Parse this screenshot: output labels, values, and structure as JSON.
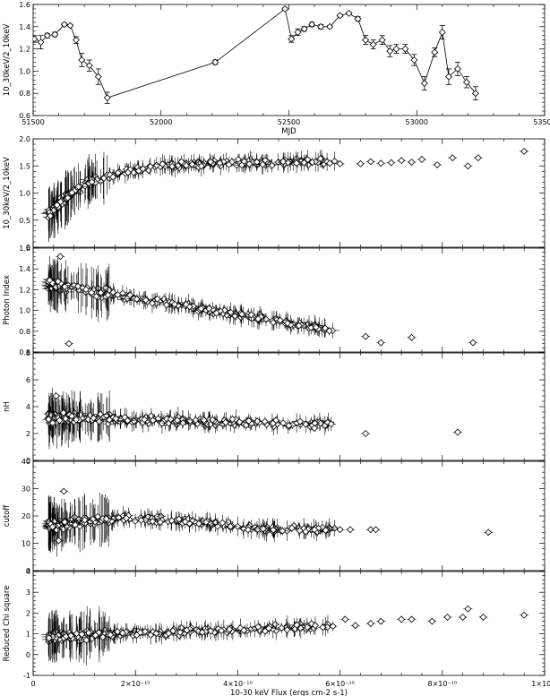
{
  "chart_data": [
    {
      "id": "ratio-vs-mjd",
      "type": "line",
      "xlabel": "MJD",
      "ylabel": "10_30keV/2_10keV",
      "xlim": [
        51500,
        53500
      ],
      "ylim": [
        0.6,
        1.6
      ],
      "xticks": [
        51500,
        52000,
        52500,
        53000,
        53500
      ],
      "yticks": [
        0.6,
        0.8,
        1.0,
        1.2,
        1.4,
        1.6
      ],
      "ytick_labels": [
        "0.6",
        "0.8",
        "1.0",
        "1.2",
        "1.4",
        "1.6"
      ],
      "marker": "diamond",
      "connected": true,
      "x": [
        51505,
        51530,
        51555,
        51585,
        51622,
        51645,
        51668,
        51690,
        51720,
        51755,
        51790,
        52212,
        52485,
        52510,
        52535,
        52560,
        52590,
        52625,
        52660,
        52700,
        52735,
        52770,
        52800,
        52830,
        52865,
        52895,
        52920,
        52955,
        52990,
        53030,
        53070,
        53100,
        53125,
        53160,
        53195,
        53230
      ],
      "y": [
        1.29,
        1.26,
        1.32,
        1.33,
        1.42,
        1.41,
        1.28,
        1.1,
        1.05,
        0.95,
        0.76,
        1.08,
        1.56,
        1.29,
        1.35,
        1.38,
        1.42,
        1.4,
        1.4,
        1.5,
        1.52,
        1.47,
        1.28,
        1.24,
        1.28,
        1.18,
        1.2,
        1.2,
        1.1,
        0.89,
        1.17,
        1.35,
        0.95,
        1.02,
        0.9,
        0.8
      ],
      "yerr": [
        0.03,
        0.06,
        0.02,
        0.02,
        0.01,
        0.01,
        0.03,
        0.06,
        0.05,
        0.07,
        0.05,
        0.02,
        0.01,
        0.03,
        0.03,
        0.02,
        0.02,
        0.02,
        0.01,
        0.01,
        0.01,
        0.02,
        0.04,
        0.04,
        0.04,
        0.05,
        0.04,
        0.04,
        0.05,
        0.06,
        0.04,
        0.06,
        0.07,
        0.06,
        0.05,
        0.06
      ]
    },
    {
      "id": "ratio-vs-flux",
      "type": "scatter",
      "ylabel": "10_30keV/2_10keV",
      "xlim": [
        0,
        1.0
      ],
      "ylim": [
        0,
        2.0
      ],
      "yticks": [
        0,
        0.5,
        1.0,
        1.5,
        2.0
      ],
      "ytick_labels": [
        "0",
        "0.5",
        "1.0",
        "1.5",
        "2.0"
      ],
      "marker": "diamond",
      "shape": {
        "kind": "saturating",
        "floor": 0.2,
        "top": 1.58,
        "slope": 0.2,
        "scale": 0.09,
        "x0": 0.0
      },
      "extra_points": [
        [
          0.58,
          1.55
        ],
        [
          0.6,
          1.54
        ],
        [
          0.64,
          1.54
        ],
        [
          0.66,
          1.58
        ],
        [
          0.68,
          1.55
        ],
        [
          0.7,
          1.56
        ],
        [
          0.72,
          1.6
        ],
        [
          0.74,
          1.57
        ],
        [
          0.76,
          1.62
        ],
        [
          0.79,
          1.52
        ],
        [
          0.82,
          1.65
        ],
        [
          0.85,
          1.5
        ],
        [
          0.87,
          1.65
        ],
        [
          0.96,
          1.77
        ]
      ]
    },
    {
      "id": "photon-index",
      "type": "scatter",
      "ylabel": "Photon Index",
      "xlim": [
        0,
        1.0
      ],
      "ylim": [
        0.6,
        1.6
      ],
      "yticks": [
        0.6,
        0.8,
        1.0,
        1.2,
        1.4,
        1.6
      ],
      "ytick_labels": [
        "0.6",
        "0.8",
        "1.0",
        "1.2",
        "1.4",
        "1.6"
      ],
      "marker": "diamond",
      "shape": {
        "kind": "linear",
        "a": 1.28,
        "b": -0.8
      },
      "extra_points": [
        [
          0.053,
          1.52
        ],
        [
          0.07,
          0.68
        ],
        [
          0.65,
          0.75
        ],
        [
          0.68,
          0.69
        ],
        [
          0.74,
          0.74
        ],
        [
          0.86,
          0.69
        ]
      ]
    },
    {
      "id": "nh",
      "type": "scatter",
      "ylabel": "nH",
      "xlim": [
        0,
        1.0
      ],
      "ylim": [
        0,
        8
      ],
      "yticks": [
        0,
        2,
        4,
        6,
        8
      ],
      "ytick_labels": [
        "0",
        "2",
        "4",
        "6",
        "8"
      ],
      "marker": "diamond",
      "shape": {
        "kind": "linear",
        "a": 3.2,
        "b": -0.9
      },
      "extra_points": [
        [
          0.045,
          4.8
        ],
        [
          0.5,
          2.6
        ],
        [
          0.55,
          2.4
        ],
        [
          0.65,
          2.0
        ],
        [
          0.83,
          2.1
        ]
      ]
    },
    {
      "id": "cutoff",
      "type": "scatter",
      "ylabel": "cutoff",
      "xlim": [
        0,
        1.0
      ],
      "ylim": [
        0,
        40
      ],
      "yticks": [
        0,
        10,
        20,
        30,
        40
      ],
      "ytick_labels": [
        "0",
        "10",
        "20",
        "30",
        "40"
      ],
      "marker": "diamond",
      "shape": {
        "kind": "hump",
        "base": 15,
        "peak": 19,
        "center": 0.2
      },
      "extra_points": [
        [
          0.05,
          11
        ],
        [
          0.06,
          29
        ],
        [
          0.55,
          15
        ],
        [
          0.6,
          15
        ],
        [
          0.62,
          15
        ],
        [
          0.66,
          15
        ],
        [
          0.67,
          15
        ],
        [
          0.89,
          14
        ]
      ]
    },
    {
      "id": "reduced-chi-square",
      "type": "scatter",
      "ylabel": "Reduced Chi square",
      "xlabel": "10-30 keV Flux (ergs cm-2 s-1)",
      "xlim": [
        0,
        1.0
      ],
      "ylim": [
        -1,
        4
      ],
      "yticks": [
        -1,
        0,
        1,
        2,
        3,
        4
      ],
      "ytick_labels": [
        "-1",
        "0",
        "1",
        "2",
        "3",
        "4"
      ],
      "xticks": [
        0,
        0.2,
        0.4,
        0.6,
        0.8,
        1.0
      ],
      "xtick_labels": [
        "0",
        "2×10⁻¹⁰",
        "4×10⁻¹⁰",
        "6×10⁻¹⁰",
        "8×10⁻¹⁰",
        "1×10⁻⁹"
      ],
      "marker": "diamond",
      "shape": {
        "kind": "linear",
        "a": 0.85,
        "b": 0.9
      },
      "extra_points": [
        [
          0.61,
          1.7
        ],
        [
          0.63,
          1.4
        ],
        [
          0.66,
          1.5
        ],
        [
          0.68,
          1.6
        ],
        [
          0.72,
          1.7
        ],
        [
          0.74,
          1.7
        ],
        [
          0.78,
          1.6
        ],
        [
          0.81,
          1.8
        ],
        [
          0.84,
          1.8
        ],
        [
          0.85,
          2.2
        ],
        [
          0.88,
          1.8
        ],
        [
          0.96,
          1.9
        ]
      ]
    }
  ]
}
